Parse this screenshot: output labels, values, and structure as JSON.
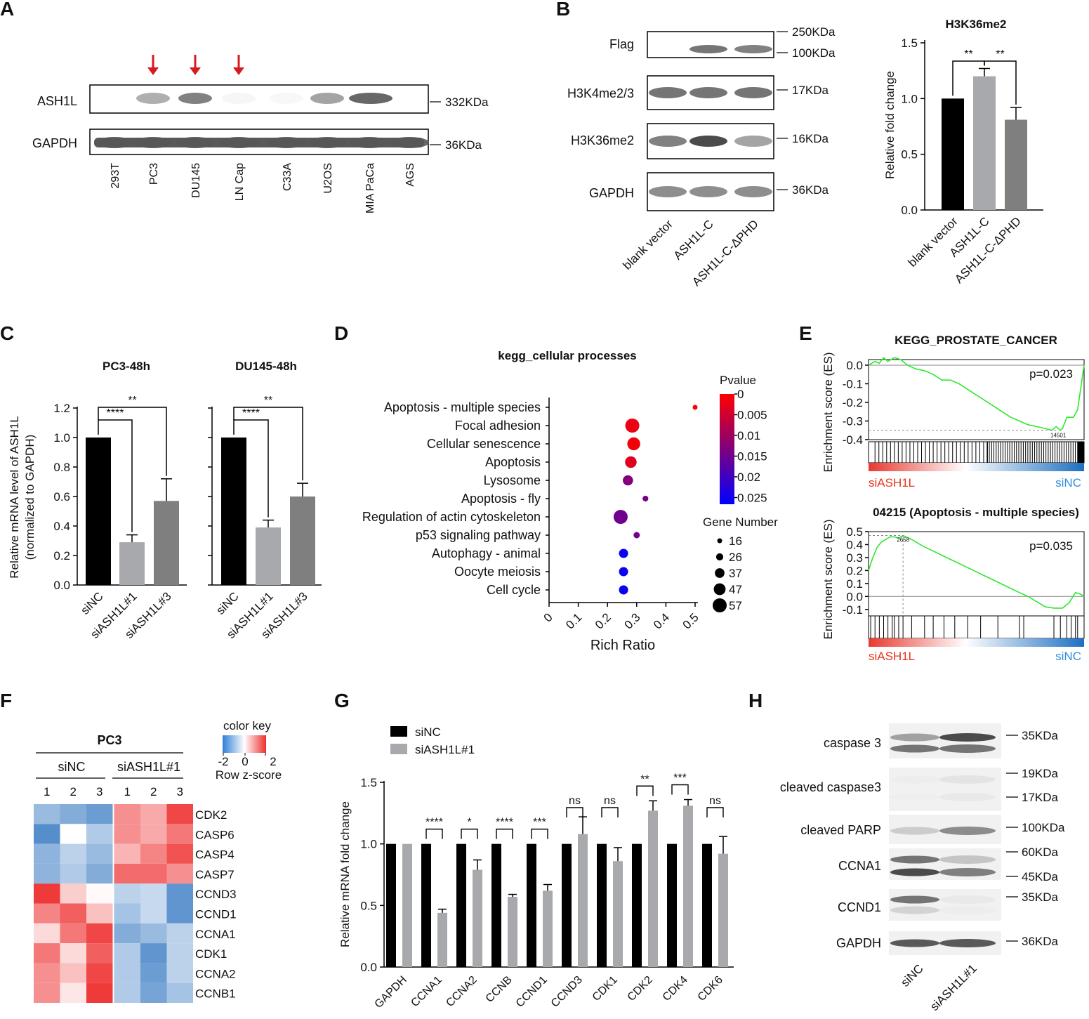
{
  "colors": {
    "black": "#000000",
    "gray_light": "#a7a9ac",
    "gray_dark": "#7f7f7f",
    "red_arrow": "#d71920",
    "gsea_line": "#2ee82e",
    "red_text": "#e8331c",
    "blue_text": "#2f8fdc",
    "heat_hi": "#ef3a3a",
    "heat_lo": "#4a86c8"
  },
  "panelA": {
    "label": "A",
    "blots": [
      {
        "name": "ASH1L",
        "size": "332KDa"
      },
      {
        "name": "GAPDH",
        "size": "36KDa"
      }
    ],
    "lanes": [
      "293T",
      "PC3",
      "DU145",
      "LN Cap",
      "C33A",
      "U2OS",
      "MIA PaCa",
      "AGS"
    ],
    "ash1l_intensity": [
      0,
      0.55,
      0.75,
      0.05,
      0.03,
      0.6,
      0.85,
      0
    ],
    "arrow_lanes": [
      1,
      2,
      3
    ]
  },
  "panelB": {
    "label": "B",
    "blots": [
      {
        "name": "Flag",
        "sizes": [
          "250KDa",
          "100KDa"
        ],
        "intensity": [
          0,
          0.8,
          0.75
        ]
      },
      {
        "name": "H3K4me2/3",
        "sizes": [
          "17KDa"
        ],
        "intensity": [
          0.8,
          0.8,
          0.8
        ]
      },
      {
        "name": "H3K36me2",
        "sizes": [
          "16KDa"
        ],
        "intensity": [
          0.75,
          0.95,
          0.6
        ]
      },
      {
        "name": "GAPDH",
        "sizes": [
          "36KDa"
        ],
        "intensity": [
          0.7,
          0.7,
          0.7
        ]
      }
    ],
    "lanes": [
      "blank vector",
      "ASH1L-C",
      "ASH1L-C-ΔPHD"
    ]
  },
  "panelC": {
    "label": "C",
    "ylabel_line1": "Relative mRNA level of ASH1L",
    "ylabel_line2": "(normalized to GAPDH)",
    "significance": [
      "****",
      "**"
    ]
  },
  "panelD": {
    "label": "D",
    "pvalue_title": "Pvalue",
    "pvalue_ticks": [
      "0",
      "0.005",
      "0.01",
      "0.015",
      "0.02",
      "0.025"
    ],
    "gene_number_title": "Gene Number",
    "gene_number_ticks": [
      "16",
      "26",
      "37",
      "47",
      "57"
    ]
  },
  "panelE": {
    "label": "E",
    "left_label": "siASH1L",
    "right_label": "siNC",
    "ylabel": "Enrichment score (ES)"
  },
  "panelF": {
    "label": "F",
    "title": "PC3",
    "groups": [
      "siNC",
      "siASH1L#1"
    ],
    "reps": [
      "1",
      "2",
      "3",
      "1",
      "2",
      "3"
    ],
    "genes": [
      "CDK2",
      "CASP6",
      "CASP4",
      "CASP7",
      "CCND3",
      "CCND1",
      "CCNA1",
      "CDK1",
      "CCNA2",
      "CCNB1"
    ],
    "zscores": [
      [
        -0.9,
        -1.1,
        -1.3,
        0.9,
        0.7,
        1.5
      ],
      [
        -1.5,
        0.0,
        -0.7,
        0.9,
        0.7,
        1.1
      ],
      [
        -1.0,
        -0.6,
        -0.9,
        0.6,
        1.0,
        1.4
      ],
      [
        -1.0,
        -0.7,
        -1.1,
        1.2,
        1.2,
        0.9
      ],
      [
        1.6,
        0.4,
        0.05,
        -0.6,
        -0.5,
        -1.4
      ],
      [
        1.0,
        1.3,
        0.5,
        -0.8,
        -0.5,
        -1.4
      ],
      [
        0.3,
        1.1,
        1.5,
        -1.1,
        -0.9,
        -0.6
      ],
      [
        1.1,
        0.3,
        1.3,
        -0.7,
        -1.4,
        -0.6
      ],
      [
        0.9,
        0.5,
        1.5,
        -0.7,
        -1.3,
        -0.6
      ],
      [
        0.9,
        0.2,
        1.6,
        -0.7,
        -1.2,
        -0.8
      ]
    ],
    "key_title": "color key",
    "key_ticks": [
      "-2",
      "0",
      "2"
    ],
    "key_label": "Row z-score"
  },
  "panelG": {
    "label": "G",
    "significance": [
      "****",
      "*",
      "****",
      "***",
      "ns",
      "ns",
      "**",
      "***",
      "ns"
    ]
  },
  "panelH": {
    "label": "H",
    "blots": [
      {
        "name": "caspase 3",
        "sizes": [
          "35KDa"
        ]
      },
      {
        "name": "cleaved caspase3",
        "sizes": [
          "19KDa",
          "17KDa"
        ]
      },
      {
        "name": "cleaved PARP",
        "sizes": [
          "100KDa"
        ]
      },
      {
        "name": "CCNA1",
        "sizes": [
          "60KDa",
          "45KDa"
        ]
      },
      {
        "name": "CCND1",
        "sizes": [
          "35KDa"
        ]
      },
      {
        "name": "GAPDH",
        "sizes": [
          "36KDa"
        ]
      }
    ],
    "lanes": [
      "siNC",
      "siASH1L#1"
    ]
  },
  "chart_data": [
    {
      "id": "B_bar",
      "type": "bar",
      "title": "H3K36me2",
      "ylabel": "Relative fold change",
      "categories": [
        "blank vector",
        "ASH1L-C",
        "ASH1L-C-ΔPHD"
      ],
      "values": [
        1.0,
        1.2,
        0.81
      ],
      "errors": [
        0,
        0.07,
        0.11
      ],
      "ylim": [
        0,
        1.5
      ],
      "yticks": [
        "0.0",
        "0.5",
        "1.0",
        "1.5"
      ],
      "significance": [
        "**",
        "**"
      ]
    },
    {
      "id": "C_pc3",
      "type": "bar",
      "title": "PC3-48h",
      "categories": [
        "siNC",
        "siASH1L#1",
        "siASH1L#3"
      ],
      "values": [
        1.0,
        0.29,
        0.57
      ],
      "errors": [
        0,
        0.05,
        0.15
      ],
      "ylim": [
        0,
        1.2
      ],
      "yticks": [
        "0.0",
        "0.2",
        "0.4",
        "0.6",
        "0.8",
        "1.0",
        "1.2"
      ]
    },
    {
      "id": "C_du145",
      "type": "bar",
      "title": "DU145-48h",
      "categories": [
        "siNC",
        "siASH1L#1",
        "siASH1L#3"
      ],
      "values": [
        1.0,
        0.39,
        0.6
      ],
      "errors": [
        0,
        0.05,
        0.09
      ],
      "ylim": [
        0,
        1.2
      ]
    },
    {
      "id": "D_dot",
      "type": "scatter",
      "title": "kegg_cellular processes",
      "xlabel": "Rich Ratio",
      "xticks": [
        "0",
        "0.1",
        "0.2",
        "0.3",
        "0.4",
        "0.5"
      ],
      "xlim": [
        0,
        0.5
      ],
      "categories": [
        "Apoptosis - multiple species",
        "Focal adhesion",
        "Cellular senescence",
        "Apoptosis",
        "Lysosome",
        "Apoptosis - fly",
        "Regulation of actin cytoskeleton",
        "p53 signaling pathway",
        "Autophagy - animal",
        "Oocyte meiosis",
        "Cell cycle"
      ],
      "rich_ratio": [
        0.5,
        0.285,
        0.29,
        0.28,
        0.27,
        0.33,
        0.245,
        0.3,
        0.255,
        0.255,
        0.255
      ],
      "pvalue": [
        0.0,
        0.002,
        0.001,
        0.003,
        0.012,
        0.013,
        0.014,
        0.014,
        0.024,
        0.024,
        0.024
      ],
      "gene_number": [
        16,
        57,
        52,
        46,
        40,
        20,
        57,
        22,
        35,
        35,
        35
      ]
    },
    {
      "id": "E_top",
      "type": "line",
      "title": "KEGG_PROSTATE_CANCER",
      "annotation": "p=0.023",
      "yticks": [
        "0.0",
        "-0.1",
        "-0.2",
        "-0.3",
        "-0.4"
      ],
      "ylim": [
        -0.4,
        0.03
      ],
      "min_rank_label": "14501",
      "min_es": -0.35,
      "x": [
        0,
        0.03,
        0.05,
        0.07,
        0.09,
        0.12,
        0.15,
        0.18,
        0.22,
        0.26,
        0.3,
        0.34,
        0.38,
        0.42,
        0.46,
        0.5,
        0.54,
        0.58,
        0.62,
        0.66,
        0.7,
        0.74,
        0.78,
        0.82,
        0.85,
        0.87,
        0.89,
        0.9,
        0.92,
        0.95,
        0.97,
        0.99,
        1.0
      ],
      "y": [
        0,
        0.02,
        0.01,
        0.04,
        0.02,
        0.04,
        0.03,
        0.0,
        -0.02,
        -0.03,
        -0.05,
        -0.08,
        -0.08,
        -0.1,
        -0.13,
        -0.16,
        -0.19,
        -0.22,
        -0.25,
        -0.28,
        -0.3,
        -0.32,
        -0.33,
        -0.34,
        -0.35,
        -0.33,
        -0.35,
        -0.34,
        -0.28,
        -0.28,
        -0.24,
        -0.08,
        0.0
      ]
    },
    {
      "id": "E_bottom",
      "type": "line",
      "title": "04215 (Apoptosis - multiple species)",
      "annotation": "p=0.035",
      "yticks": [
        "0.5",
        "0.4",
        "0.3",
        "0.2",
        "0.1",
        "0.0",
        "-0.1"
      ],
      "ylim": [
        -0.15,
        0.5
      ],
      "max_rank_label": "2658",
      "max_es": 0.47,
      "x": [
        0,
        0.02,
        0.04,
        0.06,
        0.08,
        0.1,
        0.12,
        0.14,
        0.16,
        0.2,
        0.25,
        0.3,
        0.35,
        0.4,
        0.45,
        0.5,
        0.55,
        0.6,
        0.65,
        0.7,
        0.74,
        0.78,
        0.82,
        0.86,
        0.9,
        0.93,
        0.96,
        0.98,
        1.0
      ],
      "y": [
        0.2,
        0.3,
        0.38,
        0.42,
        0.44,
        0.46,
        0.46,
        0.45,
        0.47,
        0.44,
        0.39,
        0.35,
        0.31,
        0.27,
        0.23,
        0.19,
        0.15,
        0.11,
        0.07,
        0.03,
        0.0,
        -0.04,
        -0.08,
        -0.09,
        -0.09,
        -0.05,
        0.03,
        0.02,
        0.0
      ]
    },
    {
      "id": "G_bar",
      "type": "bar",
      "ylabel": "Relative mRNA fold change",
      "categories": [
        "GAPDH",
        "CCNA1",
        "CCNA2",
        "CCNB",
        "CCND1",
        "CCND3",
        "CDK1",
        "CDK2",
        "CDK4",
        "CDK6"
      ],
      "series": [
        {
          "name": "siNC",
          "values": [
            1,
            1,
            1,
            1,
            1,
            1,
            1,
            1,
            1,
            1
          ],
          "errors": [
            0,
            0,
            0,
            0,
            0,
            0,
            0,
            0,
            0,
            0
          ]
        },
        {
          "name": "siASH1L#1",
          "values": [
            1,
            0.44,
            0.79,
            0.57,
            0.62,
            1.08,
            0.86,
            1.27,
            1.31,
            0.92
          ],
          "errors": [
            0,
            0.03,
            0.08,
            0.02,
            0.05,
            0.14,
            0.11,
            0.08,
            0.05,
            0.14
          ]
        }
      ],
      "ylim": [
        0,
        1.5
      ],
      "yticks": [
        "0.0",
        "0.5",
        "1.0",
        "1.5"
      ]
    }
  ]
}
